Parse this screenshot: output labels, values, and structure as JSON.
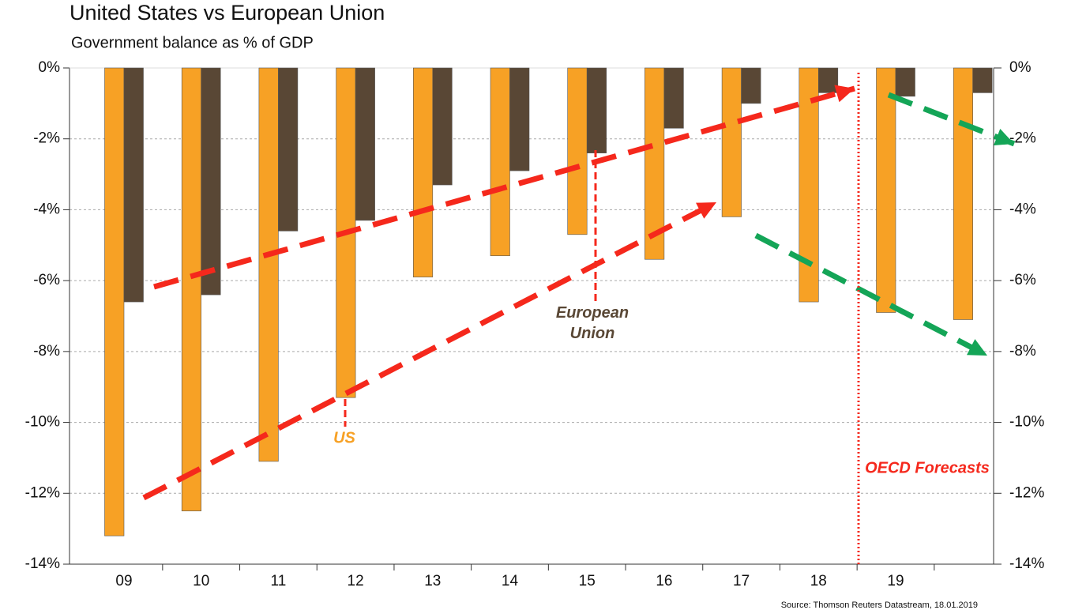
{
  "chart_data": {
    "type": "bar",
    "title": "United States vs European Union",
    "subtitle": "Government balance as % of GDP",
    "categories": [
      "09",
      "10",
      "11",
      "12",
      "13",
      "14",
      "15",
      "16",
      "17",
      "18",
      "19",
      null
    ],
    "series": [
      {
        "name": "US",
        "color": "#f7a125",
        "values": [
          -13.2,
          -12.5,
          -11.1,
          -9.3,
          -5.9,
          -5.3,
          -4.7,
          -5.4,
          -4.2,
          -6.6,
          -6.9,
          -7.1
        ]
      },
      {
        "name": "European Union",
        "color": "#594735",
        "values": [
          -6.6,
          -6.4,
          -4.6,
          -4.3,
          -3.3,
          -2.9,
          -2.4,
          -1.7,
          -1.0,
          -0.7,
          -0.8,
          -0.7
        ]
      }
    ],
    "ylim": [
      -14,
      0
    ],
    "yticks": [
      {
        "value": 0,
        "label": "0%"
      },
      {
        "value": -2,
        "label": "-2%"
      },
      {
        "value": -4,
        "label": "-4%"
      },
      {
        "value": -6,
        "label": "-6%"
      },
      {
        "value": -8,
        "label": "-8%"
      },
      {
        "value": -10,
        "label": "-10%"
      },
      {
        "value": -12,
        "label": "-12%"
      },
      {
        "value": -14,
        "label": "-14%"
      }
    ],
    "y2lim": [
      -14,
      0
    ],
    "y2ticks": [
      {
        "value": 0,
        "label": "0%"
      },
      {
        "value": -2,
        "label": "-2%"
      },
      {
        "value": -4,
        "label": "-4%"
      },
      {
        "value": -6,
        "label": "-6%"
      },
      {
        "value": -8,
        "label": "-8%"
      },
      {
        "value": -10,
        "label": "-10%"
      },
      {
        "value": -12,
        "label": "-12%"
      },
      {
        "value": -14,
        "label": "-14%"
      }
    ],
    "grid": true,
    "annotations": [
      "OECD Forecasts"
    ],
    "source": "Source: Thomson Reuters Datastream, 18.01.2019"
  }
}
